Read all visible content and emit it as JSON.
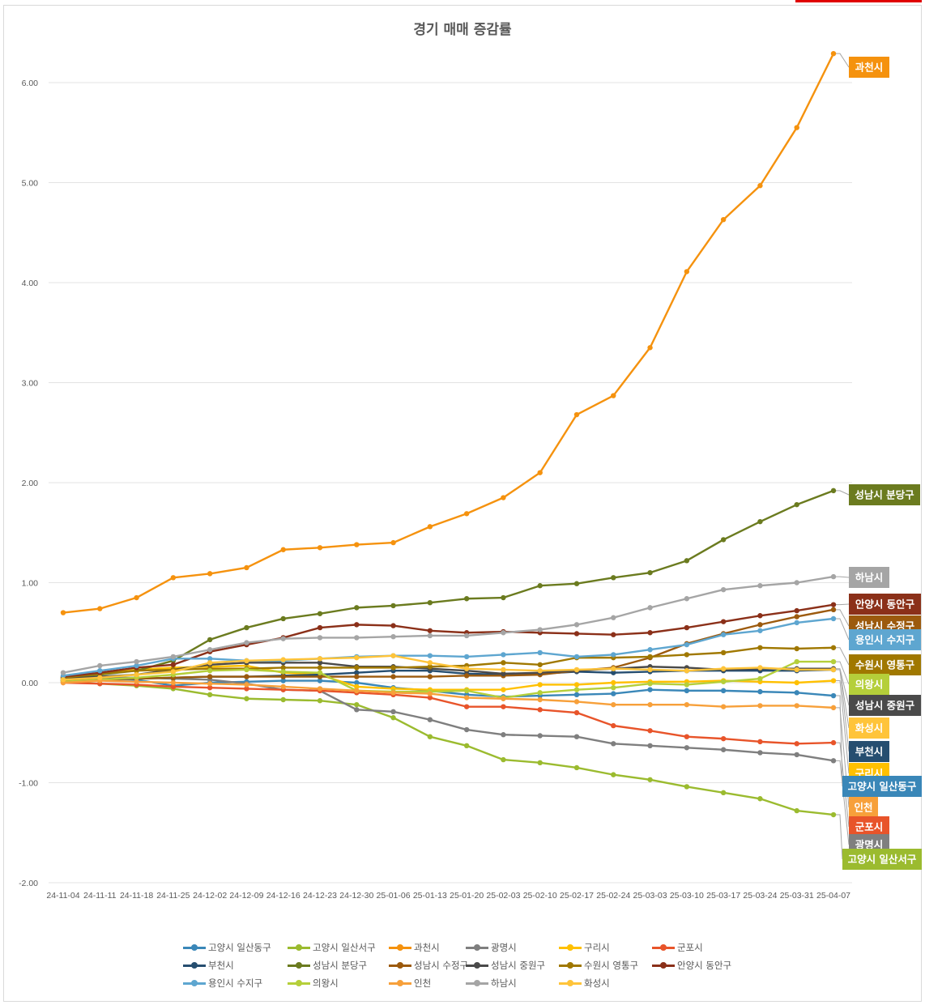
{
  "chart_data": {
    "type": "line",
    "title": "경기 매매 증감률",
    "xlabel": "",
    "ylabel": "",
    "ylim": [
      -2,
      6.5
    ],
    "yticks": [
      -2,
      1,
      2,
      3,
      4,
      5,
      6,
      0,
      -1
    ],
    "ytick_labels": [
      "-2.00",
      "1.00",
      "2.00",
      "3.00",
      "4.00",
      "5.00",
      "6.00",
      "0.00",
      "-1.00"
    ],
    "grid": true,
    "legend_position": "bottom",
    "x": [
      "24-11-04",
      "24-11-11",
      "24-11-18",
      "24-11-25",
      "24-12-02",
      "24-12-09",
      "24-12-16",
      "24-12-23",
      "24-12-30",
      "25-01-06",
      "25-01-13",
      "25-01-20",
      "25-02-03",
      "25-02-10",
      "25-02-17",
      "25-02-24",
      "25-03-03",
      "25-03-10",
      "25-03-17",
      "25-03-24",
      "25-03-31",
      "25-04-07"
    ],
    "series": [
      {
        "name": "고양시 일산동구",
        "color": "#3a87b8",
        "values": [
          0.02,
          0.04,
          0.03,
          -0.03,
          0.0,
          0.01,
          0.02,
          0.02,
          0.0,
          -0.05,
          -0.08,
          -0.12,
          -0.14,
          -0.13,
          -0.12,
          -0.11,
          -0.07,
          -0.08,
          -0.08,
          -0.09,
          -0.1,
          -0.13
        ]
      },
      {
        "name": "고양시 일산서구",
        "color": "#9bbb2f",
        "values": [
          0.01,
          -0.01,
          -0.03,
          -0.06,
          -0.12,
          -0.16,
          -0.17,
          -0.18,
          -0.22,
          -0.35,
          -0.54,
          -0.63,
          -0.77,
          -0.8,
          -0.85,
          -0.92,
          -0.97,
          -1.04,
          -1.1,
          -1.16,
          -1.28,
          -1.32
        ]
      },
      {
        "name": "과천시",
        "color": "#f5920e",
        "values": [
          0.7,
          0.74,
          0.85,
          1.05,
          1.09,
          1.15,
          1.33,
          1.35,
          1.38,
          1.4,
          1.56,
          1.69,
          1.85,
          2.1,
          2.68,
          2.87,
          3.35,
          4.11,
          4.63,
          4.97,
          5.55,
          6.29
        ]
      },
      {
        "name": "광명시",
        "color": "#7f7f7f",
        "values": [
          0.02,
          0.05,
          0.05,
          0.04,
          0.03,
          -0.01,
          -0.07,
          -0.08,
          -0.27,
          -0.29,
          -0.37,
          -0.47,
          -0.52,
          -0.53,
          -0.54,
          -0.61,
          -0.63,
          -0.65,
          -0.67,
          -0.7,
          -0.72,
          -0.78
        ]
      },
      {
        "name": "구리시",
        "color": "#ffc000",
        "values": [
          0.05,
          0.09,
          0.13,
          0.15,
          0.16,
          0.17,
          0.1,
          0.08,
          -0.04,
          -0.06,
          -0.07,
          -0.07,
          -0.07,
          -0.02,
          -0.02,
          0.0,
          0.01,
          0.01,
          0.02,
          0.01,
          0.0,
          0.02
        ]
      },
      {
        "name": "군포시",
        "color": "#e8542a",
        "values": [
          0.0,
          -0.01,
          -0.02,
          -0.04,
          -0.05,
          -0.06,
          -0.07,
          -0.08,
          -0.1,
          -0.12,
          -0.15,
          -0.24,
          -0.24,
          -0.27,
          -0.3,
          -0.43,
          -0.48,
          -0.54,
          -0.56,
          -0.59,
          -0.61,
          -0.6
        ]
      },
      {
        "name": "부천시",
        "color": "#264e70",
        "values": [
          0.03,
          0.04,
          0.04,
          0.05,
          0.06,
          0.06,
          0.07,
          0.08,
          0.1,
          0.12,
          0.12,
          0.09,
          0.08,
          0.09,
          0.11,
          0.1,
          0.11,
          0.12,
          0.12,
          0.12,
          0.12,
          0.13
        ]
      },
      {
        "name": "성남시 분당구",
        "color": "#6b7b1f",
        "values": [
          0.05,
          0.08,
          0.12,
          0.22,
          0.43,
          0.55,
          0.64,
          0.69,
          0.75,
          0.77,
          0.8,
          0.84,
          0.85,
          0.97,
          0.99,
          1.05,
          1.1,
          1.22,
          1.43,
          1.61,
          1.78,
          1.92
        ]
      },
      {
        "name": "성남시 수정구",
        "color": "#9c5a0d",
        "values": [
          0.02,
          0.03,
          0.04,
          0.05,
          0.06,
          0.06,
          0.06,
          0.06,
          0.06,
          0.06,
          0.06,
          0.07,
          0.07,
          0.08,
          0.12,
          0.15,
          0.25,
          0.39,
          0.49,
          0.58,
          0.66,
          0.73
        ]
      },
      {
        "name": "성남시 중원구",
        "color": "#4a4a4a",
        "values": [
          0.04,
          0.06,
          0.08,
          0.13,
          0.18,
          0.2,
          0.2,
          0.2,
          0.16,
          0.16,
          0.14,
          0.12,
          0.09,
          0.1,
          0.12,
          0.14,
          0.16,
          0.15,
          0.13,
          0.14,
          0.14,
          0.14
        ]
      },
      {
        "name": "수원시 영통구",
        "color": "#a07800",
        "values": [
          0.05,
          0.09,
          0.12,
          0.13,
          0.14,
          0.14,
          0.15,
          0.15,
          0.15,
          0.15,
          0.16,
          0.17,
          0.2,
          0.18,
          0.25,
          0.25,
          0.26,
          0.28,
          0.3,
          0.35,
          0.34,
          0.35
        ]
      },
      {
        "name": "안양시 동안구",
        "color": "#8b3019",
        "values": [
          0.06,
          0.1,
          0.15,
          0.18,
          0.31,
          0.38,
          0.45,
          0.55,
          0.58,
          0.57,
          0.52,
          0.5,
          0.51,
          0.5,
          0.49,
          0.48,
          0.5,
          0.55,
          0.61,
          0.67,
          0.72,
          0.78
        ]
      },
      {
        "name": "용인시 수지구",
        "color": "#5ea6d0",
        "values": [
          0.07,
          0.12,
          0.17,
          0.24,
          0.24,
          0.22,
          0.22,
          0.24,
          0.26,
          0.27,
          0.27,
          0.26,
          0.28,
          0.3,
          0.26,
          0.28,
          0.33,
          0.38,
          0.48,
          0.52,
          0.6,
          0.64
        ]
      },
      {
        "name": "의왕시",
        "color": "#b5cf3a",
        "values": [
          0.01,
          0.03,
          0.05,
          0.08,
          0.12,
          0.13,
          0.11,
          0.1,
          -0.08,
          -0.09,
          -0.09,
          -0.08,
          -0.15,
          -0.1,
          -0.07,
          -0.05,
          -0.01,
          -0.02,
          0.01,
          0.04,
          0.21,
          0.21
        ]
      },
      {
        "name": "인천",
        "color": "#f7a03a",
        "values": [
          0.0,
          0.02,
          0.01,
          0.0,
          -0.01,
          -0.02,
          -0.04,
          -0.06,
          -0.08,
          -0.1,
          -0.11,
          -0.15,
          -0.16,
          -0.17,
          -0.19,
          -0.22,
          -0.22,
          -0.22,
          -0.24,
          -0.23,
          -0.23,
          -0.25
        ]
      },
      {
        "name": "하남시",
        "color": "#a5a5a5",
        "values": [
          0.1,
          0.17,
          0.21,
          0.26,
          0.33,
          0.4,
          0.44,
          0.45,
          0.45,
          0.46,
          0.47,
          0.47,
          0.5,
          0.53,
          0.58,
          0.65,
          0.75,
          0.84,
          0.93,
          0.97,
          1.0,
          1.06
        ]
      },
      {
        "name": "화성시",
        "color": "#ffc43a",
        "values": [
          0.03,
          0.05,
          0.08,
          0.11,
          0.2,
          0.22,
          0.23,
          0.24,
          0.25,
          0.27,
          0.2,
          0.14,
          0.13,
          0.12,
          0.13,
          0.14,
          0.13,
          0.12,
          0.14,
          0.15,
          0.13,
          0.13
        ]
      }
    ],
    "end_labels": [
      {
        "name": "과천시",
        "color": "#f5920e"
      },
      {
        "name": "성남시 분당구",
        "color": "#6b7b1f"
      },
      {
        "name": "하남시",
        "color": "#a5a5a5"
      },
      {
        "name": "안양시 동안구",
        "color": "#8b3019"
      },
      {
        "name": "성남시 수정구",
        "color": "#9c5a0d"
      },
      {
        "name": "용인시 수지구",
        "color": "#5ea6d0"
      },
      {
        "name": "수원시 영통구",
        "color": "#a07800"
      },
      {
        "name": "의왕시",
        "color": "#b5cf3a"
      },
      {
        "name": "성남시 중원구",
        "color": "#4a4a4a"
      },
      {
        "name": "화성시",
        "color": "#ffc43a"
      },
      {
        "name": "부천시",
        "color": "#264e70"
      },
      {
        "name": "구리시",
        "color": "#ffc000"
      },
      {
        "name": "고양시 일산동구",
        "color": "#3a87b8"
      },
      {
        "name": "인천",
        "color": "#f7a03a"
      },
      {
        "name": "군포시",
        "color": "#e8542a"
      },
      {
        "name": "광명시",
        "color": "#7f7f7f"
      },
      {
        "name": "고양시 일산서구",
        "color": "#9bbb2f"
      }
    ]
  }
}
